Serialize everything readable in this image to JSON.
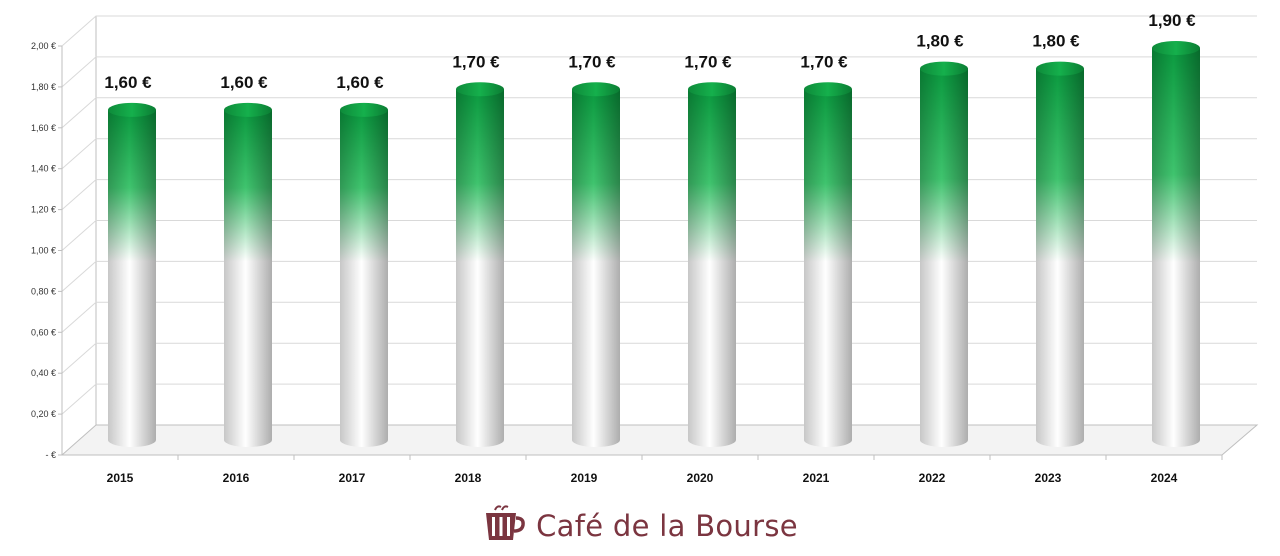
{
  "chart_data": {
    "type": "bar",
    "bar_shape": "cylinder",
    "categories": [
      "2015",
      "2016",
      "2017",
      "2018",
      "2019",
      "2020",
      "2021",
      "2022",
      "2023",
      "2024"
    ],
    "values": [
      1.6,
      1.6,
      1.6,
      1.7,
      1.7,
      1.7,
      1.7,
      1.8,
      1.8,
      1.9
    ],
    "data_labels": [
      "1,60 €",
      "1,60 €",
      "1,60 €",
      "1,70 €",
      "1,70 €",
      "1,70 €",
      "1,70 €",
      "1,80 €",
      "1,80 €",
      "1,90 €"
    ],
    "y_tick_values": [
      0,
      0.2,
      0.4,
      0.6,
      0.8,
      1.0,
      1.2,
      1.4,
      1.6,
      1.8,
      2.0
    ],
    "y_tick_labels": [
      "- €",
      "0,20 €",
      "0,40 €",
      "0,60 €",
      "0,80 €",
      "1,00 €",
      "1,20 €",
      "1,40 €",
      "1,60 €",
      "1,80 €",
      "2,00 €"
    ],
    "ylim": [
      0,
      2.0
    ],
    "grid": true,
    "legend": "none",
    "colors": {
      "bar_top": "#0a9a3f",
      "bar_bottom": "#ffffff"
    }
  },
  "logo": {
    "text": "Café de la Bourse",
    "icon": "coffee-cup-icon",
    "color": "#7b3540"
  }
}
